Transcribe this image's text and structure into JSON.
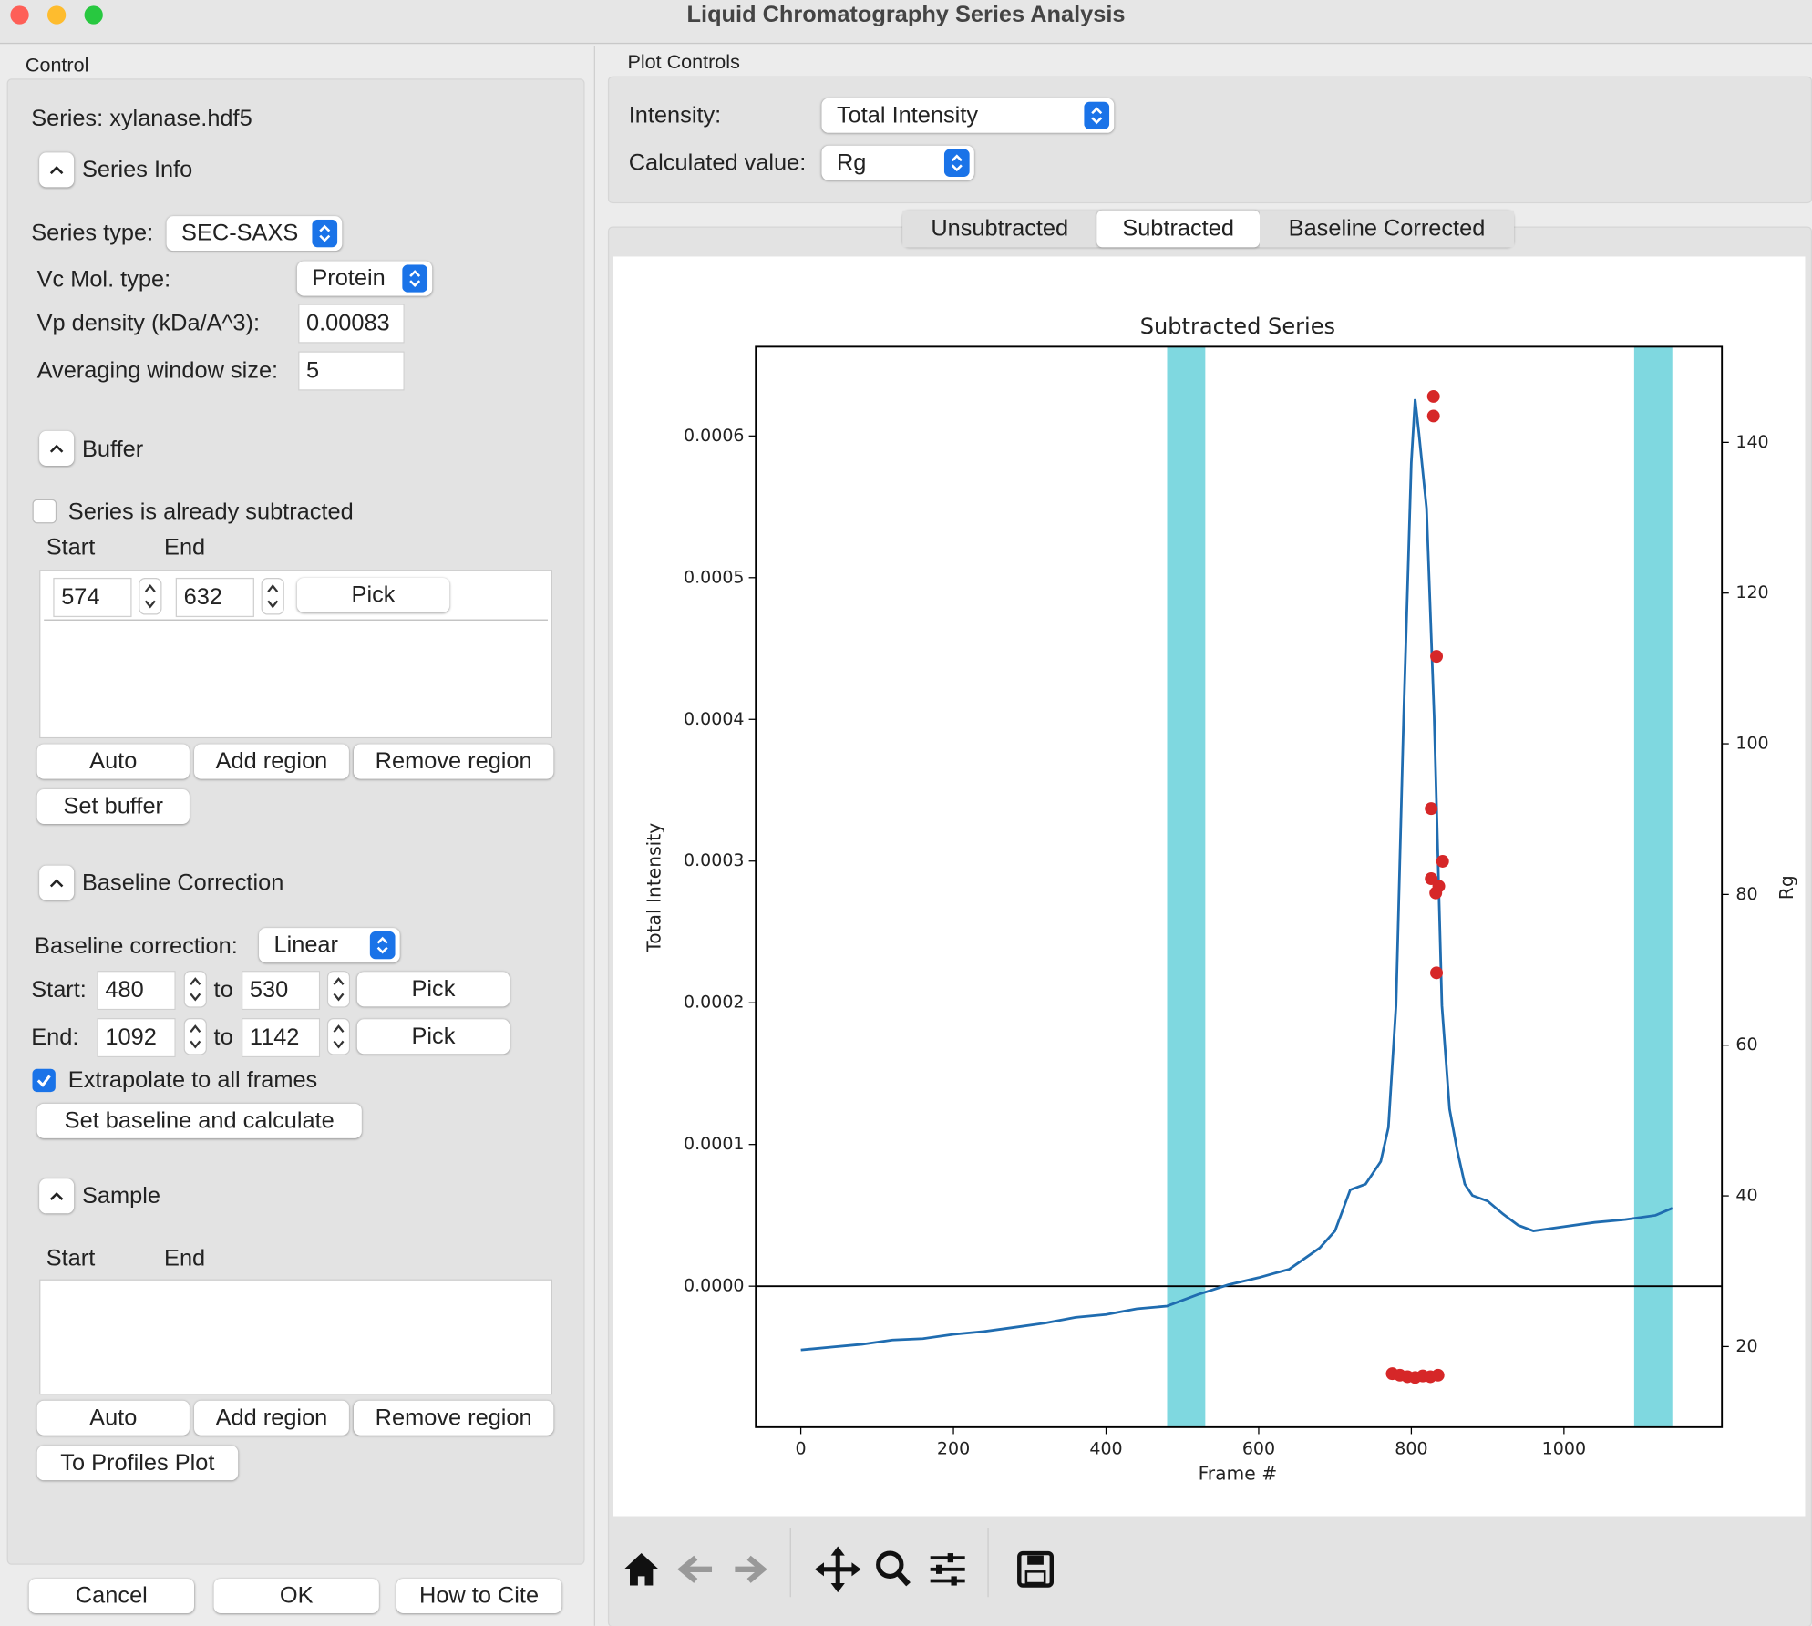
{
  "window": {
    "title": "Liquid Chromatography Series Analysis"
  },
  "control": {
    "title": "Control",
    "series": "Series: xylanase.hdf5",
    "series_info": {
      "heading": "Series Info",
      "type_label": "Series type:",
      "type": "SEC-SAXS",
      "vc_label": "Vc Mol. type:",
      "vc": "Protein",
      "vp_label": "Vp density (kDa/A^3):",
      "vp": 0.00083,
      "window_label": "Averaging window size:",
      "window": 5
    },
    "buffer": {
      "heading": "Buffer",
      "subtracted": "Series is already subtracted",
      "start_label": "Start",
      "end_label": "End",
      "regions": [
        {
          "start": 574,
          "end": 632,
          "pick": "Pick"
        }
      ],
      "auto": "Auto",
      "add": "Add region",
      "remove": "Remove region",
      "set": "Set buffer"
    },
    "baseline": {
      "heading": "Baseline Correction",
      "type_label": "Baseline correction:",
      "type": "Linear",
      "rows": [
        {
          "label": "Start:",
          "from": 480,
          "to_label": "to",
          "to": 530,
          "pick": "Pick"
        },
        {
          "label": "End:",
          "from": 1092,
          "to_label": "to",
          "to": 1142,
          "pick": "Pick"
        }
      ],
      "extrapolate": "Extrapolate to all frames",
      "set": "Set baseline and calculate"
    },
    "sample": {
      "heading": "Sample",
      "start_label": "Start",
      "end_label": "End",
      "auto": "Auto",
      "add": "Add region",
      "remove": "Remove region",
      "to_profiles": "To Profiles Plot"
    },
    "dialog": {
      "cancel": "Cancel",
      "ok": "OK",
      "cite": "How to Cite"
    }
  },
  "plot_controls": {
    "title": "Plot Controls",
    "intensity_label": "Intensity:",
    "intensity": "Total Intensity",
    "calc_label": "Calculated value:",
    "calc": "Rg",
    "tabs": [
      "Unsubtracted",
      "Subtracted",
      "Baseline Corrected"
    ],
    "selected_tab": 1
  },
  "chart_data": {
    "type": "line",
    "title": "Subtracted Series",
    "xlabel": "Frame #",
    "ylabel": "Total Intensity",
    "y2label": "Rg",
    "xlim": [
      -59,
      1207
    ],
    "ylim": [
      -9.95e-05,
      0.000663
    ],
    "y2lim": [
      9.3,
      152.7
    ],
    "xticks": [
      0,
      200,
      400,
      600,
      800,
      1000
    ],
    "yticks": [
      {
        "value": 0,
        "label": "0.0000"
      },
      {
        "value": 0.0001,
        "label": "0.0001"
      },
      {
        "value": 0.0002,
        "label": "0.0002"
      },
      {
        "value": 0.0003,
        "label": "0.0003"
      },
      {
        "value": 0.0004,
        "label": "0.0004"
      },
      {
        "value": 0.0005,
        "label": "0.0005"
      },
      {
        "value": 0.0006,
        "label": "0.0006"
      }
    ],
    "y2ticks": [
      20,
      40,
      60,
      80,
      100,
      120,
      140
    ],
    "span_color": "#7fd8e0",
    "series": [
      {
        "type": "line",
        "color": "#1f6cb0",
        "x": [
          0,
          40,
          80,
          120,
          160,
          200,
          240,
          280,
          320,
          360,
          400,
          440,
          480,
          520,
          560,
          600,
          640,
          680,
          700,
          720,
          740,
          760,
          770,
          780,
          790,
          800,
          805,
          810,
          820,
          830,
          840,
          850,
          860,
          870,
          880,
          900,
          920,
          940,
          960,
          1000,
          1040,
          1080,
          1120,
          1142
        ],
        "values": [
          -4.5e-05,
          -4.3e-05,
          -4.1e-05,
          -3.8e-05,
          -3.7e-05,
          -3.4e-05,
          -3.2e-05,
          -2.9e-05,
          -2.6e-05,
          -2.2e-05,
          -2e-05,
          -1.6e-05,
          -1.4e-05,
          -6e-06,
          1e-06,
          6e-06,
          1.2e-05,
          2.7e-05,
          3.9e-05,
          6.8e-05,
          7.2e-05,
          8.8e-05,
          0.000112,
          0.000198,
          0.000402,
          0.000581,
          0.000626,
          0.000602,
          0.000549,
          0.000402,
          0.000198,
          0.000125,
          9.6e-05,
          7.2e-05,
          6.4e-05,
          6e-05,
          5.1e-05,
          4.3e-05,
          3.9e-05,
          4.2e-05,
          4.5e-05,
          4.7e-05,
          5e-05,
          5.5e-05
        ]
      },
      {
        "type": "scatter",
        "axis": "y2",
        "color": "#d62728",
        "x": [
          829,
          829,
          833,
          826,
          841,
          826,
          836,
          832,
          833,
          775,
          785,
          795,
          805,
          815,
          825,
          835
        ],
        "values": [
          146.1,
          143.5,
          111.6,
          91.4,
          84.4,
          82.1,
          81.1,
          80.2,
          69.6,
          16.4,
          16.2,
          16.0,
          15.9,
          16.1,
          16.0,
          16.2
        ]
      }
    ]
  }
}
